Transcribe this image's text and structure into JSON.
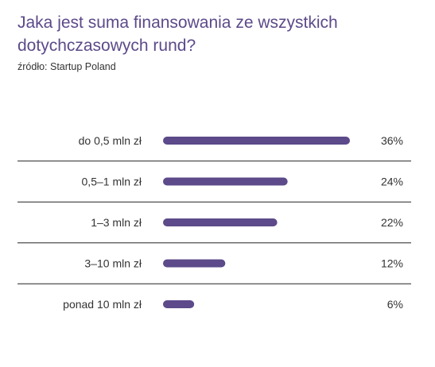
{
  "header": {
    "title": "Jaka jest suma finansowania ze wszystkich dotychczasowych rund?",
    "source": "źródło: Startup Poland"
  },
  "colors": {
    "bar": "#5c4a8a",
    "title": "#5c4a8a",
    "divider": "#222222"
  },
  "chart_data": {
    "type": "bar",
    "orientation": "horizontal",
    "categories": [
      "do 0,5 mln zł",
      "0,5–1 mln zł",
      "1–3 mln zł",
      "3–10 mln zł",
      "ponad 10 mln zł"
    ],
    "values": [
      36,
      24,
      22,
      12,
      6
    ],
    "value_labels": [
      "36%",
      "24%",
      "22%",
      "12%",
      "6%"
    ],
    "unit": "%",
    "title": "Jaka jest suma finansowania ze wszystkich dotychczasowych rund?",
    "xlabel": "",
    "ylabel": "",
    "xlim": [
      0,
      36
    ],
    "grid": false,
    "legend": "none"
  }
}
